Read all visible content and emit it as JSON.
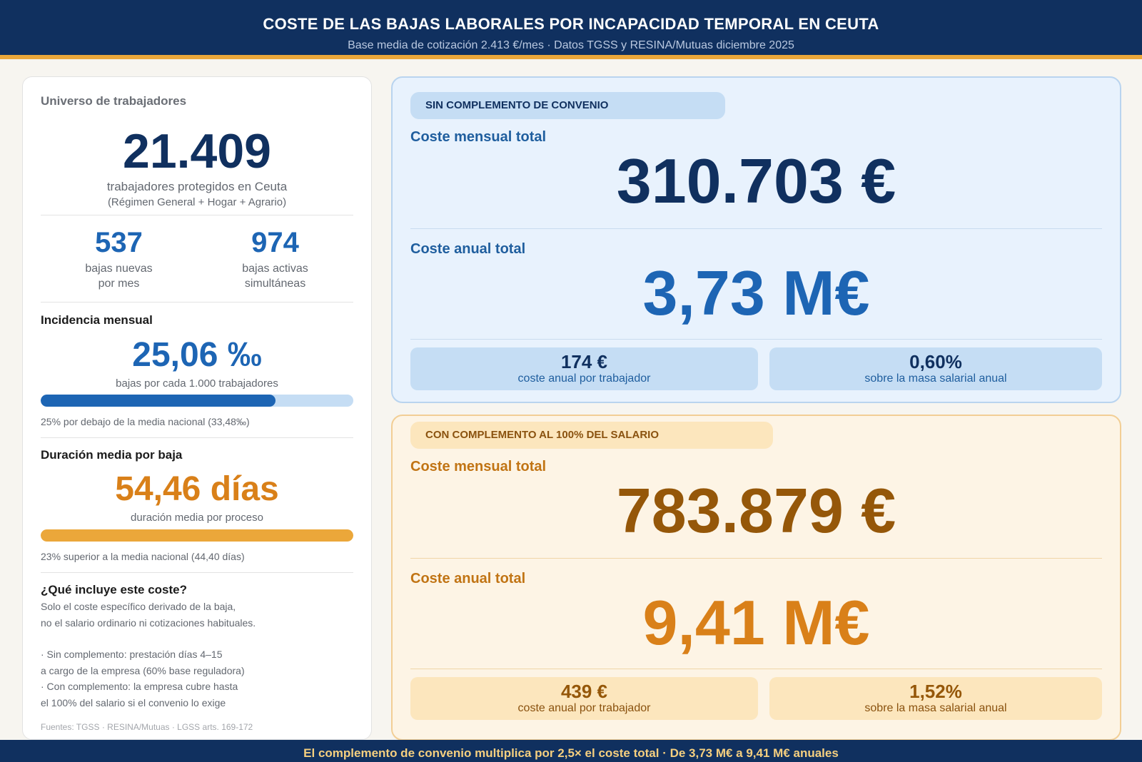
{
  "header": {
    "title": "COSTE DE LAS BAJAS LABORALES POR INCAPACIDAD TEMPORAL EN CEUTA",
    "subtitle": "Base media de cotización 2.413 €/mes  ·  Datos TGSS y RESINA/Mutuas diciembre 2025"
  },
  "left": {
    "universe_label": "Universo de trabajadores",
    "workers_value": "21.409",
    "workers_caption": "trabajadores protegidos en Ceuta",
    "workers_sub": "(Régimen General + Hogar + Agrario)",
    "new_value": "537",
    "new_caption_1": "bajas nuevas",
    "new_caption_2": "por mes",
    "active_value": "974",
    "active_caption_1": "bajas activas",
    "active_caption_2": "simultáneas",
    "incidence_title": "Incidencia mensual",
    "incidence_value": "25,06 ‰",
    "incidence_caption": "bajas por cada 1.000 trabajadores",
    "incidence_bar_pct": 75,
    "incidence_note": "25% por debajo de la media nacional (33,48‰)",
    "duration_title": "Duración media por baja",
    "duration_value": "54,46 días",
    "duration_caption": "duración media por proceso",
    "duration_bar_pct": 100,
    "duration_note": "23% superior a la media nacional (44,40 días)",
    "includes_title": "¿Qué incluye este coste?",
    "includes_text": "Solo el coste específico derivado de la baja,\nno el salario ordinario ni cotizaciones habituales.",
    "includes_list": "· Sin complemento: prestación días 4–15\n  a cargo de la empresa (60% base reguladora)\n· Con complemento: la empresa cubre hasta\n  el 100% del salario si el convenio lo exige",
    "sources": "Fuentes: TGSS · RESINA/Mutuas · LGSS arts. 169-172"
  },
  "blue_card": {
    "pill": "SIN COMPLEMENTO DE CONVENIO",
    "monthly_label": "Coste mensual total",
    "monthly_value": "310.703 €",
    "annual_label": "Coste anual total",
    "annual_value": "3,73 M€",
    "stat1_value": "174 €",
    "stat1_caption": "coste anual por trabajador",
    "stat2_value": "0,60%",
    "stat2_caption": "sobre la masa salarial anual"
  },
  "orange_card": {
    "pill": "CON COMPLEMENTO AL 100% DEL SALARIO",
    "monthly_label": "Coste mensual total",
    "monthly_value": "783.879 €",
    "annual_label": "Coste anual total",
    "annual_value": "9,41 M€",
    "stat1_value": "439 €",
    "stat1_caption": "coste anual por trabajador",
    "stat2_value": "1,52%",
    "stat2_caption": "sobre la masa salarial anual"
  },
  "footer": {
    "text": "El complemento de convenio multiplica por 2,5× el coste total  ·  De 3,73 M€ a 9,41 M€ anuales"
  },
  "colors": {
    "navy": "#10305f",
    "accent_orange": "#eba73a",
    "blue": "#1d65b4",
    "orange": "#d98019"
  }
}
